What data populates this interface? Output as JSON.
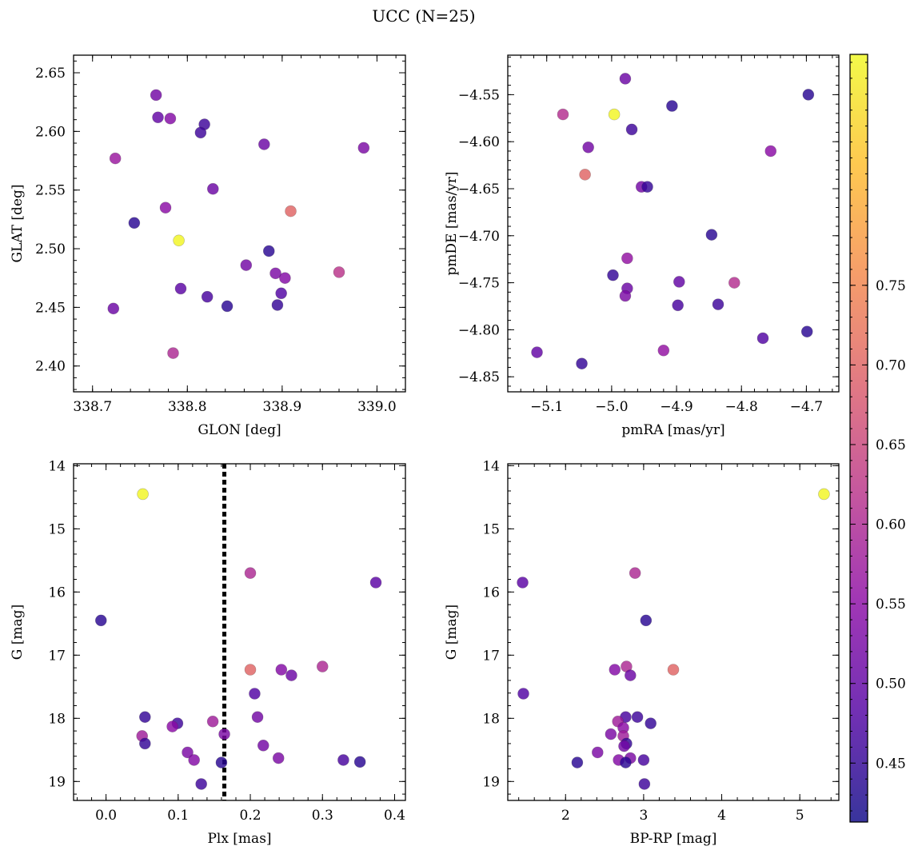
{
  "figure_title": "UCC (N=25)",
  "colormap": [
    "#0d0887",
    "#5302a3",
    "#8b0aa5",
    "#b83289",
    "#db5c68",
    "#f48849",
    "#febd2a",
    "#f0f921"
  ],
  "colorbar": {
    "min": 0.413,
    "max": 0.895,
    "ticks": [
      0.45,
      0.5,
      0.55,
      0.6,
      0.65,
      0.7,
      0.75
    ]
  },
  "chart_data": [
    {
      "type": "scatter",
      "name": "glon-glat",
      "xlabel": "GLON [deg]",
      "ylabel": "GLAT [deg]",
      "xlim": [
        338.68,
        339.03
      ],
      "ylim": [
        2.378,
        2.665
      ],
      "xticks": [
        338.7,
        338.8,
        338.9,
        339.0
      ],
      "yticks": [
        2.4,
        2.45,
        2.5,
        2.55,
        2.6,
        2.65
      ],
      "points": [
        {
          "x": 338.767,
          "y": 2.631,
          "c": 0.52
        },
        {
          "x": 338.769,
          "y": 2.612,
          "c": 0.5
        },
        {
          "x": 338.782,
          "y": 2.611,
          "c": 0.54
        },
        {
          "x": 338.818,
          "y": 2.606,
          "c": 0.46
        },
        {
          "x": 338.814,
          "y": 2.599,
          "c": 0.46
        },
        {
          "x": 338.881,
          "y": 2.589,
          "c": 0.51
        },
        {
          "x": 338.986,
          "y": 2.586,
          "c": 0.53
        },
        {
          "x": 338.724,
          "y": 2.577,
          "c": 0.57
        },
        {
          "x": 338.827,
          "y": 2.551,
          "c": 0.51
        },
        {
          "x": 338.777,
          "y": 2.535,
          "c": 0.55
        },
        {
          "x": 338.909,
          "y": 2.532,
          "c": 0.7
        },
        {
          "x": 338.744,
          "y": 2.522,
          "c": 0.44
        },
        {
          "x": 338.791,
          "y": 2.507,
          "c": 0.89
        },
        {
          "x": 338.886,
          "y": 2.498,
          "c": 0.44
        },
        {
          "x": 338.862,
          "y": 2.486,
          "c": 0.52
        },
        {
          "x": 338.96,
          "y": 2.48,
          "c": 0.62
        },
        {
          "x": 338.893,
          "y": 2.479,
          "c": 0.53
        },
        {
          "x": 338.903,
          "y": 2.475,
          "c": 0.54
        },
        {
          "x": 338.793,
          "y": 2.466,
          "c": 0.49
        },
        {
          "x": 338.899,
          "y": 2.462,
          "c": 0.48
        },
        {
          "x": 338.821,
          "y": 2.459,
          "c": 0.47
        },
        {
          "x": 338.895,
          "y": 2.452,
          "c": 0.45
        },
        {
          "x": 338.842,
          "y": 2.451,
          "c": 0.44
        },
        {
          "x": 338.722,
          "y": 2.449,
          "c": 0.51
        },
        {
          "x": 338.785,
          "y": 2.411,
          "c": 0.6
        }
      ]
    },
    {
      "type": "scatter",
      "name": "pmra-pmde",
      "xlabel": "pmRA [mas/yr]",
      "ylabel": "pmDE [mas/yr]",
      "xlim": [
        -5.16,
        -4.65
      ],
      "ylim": [
        -4.866,
        -4.508
      ],
      "xticks": [
        -5.1,
        -5.0,
        -4.9,
        -4.8,
        -4.7
      ],
      "yticks": [
        -4.55,
        -4.6,
        -4.65,
        -4.7,
        -4.75,
        -4.8,
        -4.85
      ],
      "points": [
        {
          "x": -4.979,
          "y": -4.533,
          "c": 0.51
        },
        {
          "x": -4.907,
          "y": -4.562,
          "c": 0.44
        },
        {
          "x": -4.697,
          "y": -4.55,
          "c": 0.44
        },
        {
          "x": -5.075,
          "y": -4.571,
          "c": 0.61
        },
        {
          "x": -4.996,
          "y": -4.571,
          "c": 0.89
        },
        {
          "x": -4.969,
          "y": -4.587,
          "c": 0.46
        },
        {
          "x": -5.036,
          "y": -4.606,
          "c": 0.52
        },
        {
          "x": -4.755,
          "y": -4.61,
          "c": 0.55
        },
        {
          "x": -5.041,
          "y": -4.635,
          "c": 0.7
        },
        {
          "x": -4.954,
          "y": -4.648,
          "c": 0.52
        },
        {
          "x": -4.945,
          "y": -4.648,
          "c": 0.45
        },
        {
          "x": -4.846,
          "y": -4.699,
          "c": 0.44
        },
        {
          "x": -4.976,
          "y": -4.724,
          "c": 0.56
        },
        {
          "x": -4.998,
          "y": -4.742,
          "c": 0.45
        },
        {
          "x": -4.896,
          "y": -4.749,
          "c": 0.5
        },
        {
          "x": -4.811,
          "y": -4.75,
          "c": 0.61
        },
        {
          "x": -4.976,
          "y": -4.756,
          "c": 0.51
        },
        {
          "x": -4.979,
          "y": -4.764,
          "c": 0.53
        },
        {
          "x": -4.898,
          "y": -4.774,
          "c": 0.47
        },
        {
          "x": -4.836,
          "y": -4.773,
          "c": 0.46
        },
        {
          "x": -4.767,
          "y": -4.809,
          "c": 0.48
        },
        {
          "x": -4.699,
          "y": -4.802,
          "c": 0.44
        },
        {
          "x": -4.92,
          "y": -4.822,
          "c": 0.56
        },
        {
          "x": -5.115,
          "y": -4.824,
          "c": 0.5
        },
        {
          "x": -5.046,
          "y": -4.836,
          "c": 0.45
        }
      ]
    },
    {
      "type": "scatter",
      "name": "plx-g",
      "xlabel": "Plx [mas]",
      "ylabel": "G [mag]",
      "xlim": [
        -0.045,
        0.415
      ],
      "ylim": [
        19.3,
        13.97
      ],
      "xticks": [
        0.0,
        0.1,
        0.2,
        0.3,
        0.4
      ],
      "yticks": [
        14,
        15,
        16,
        17,
        18,
        19
      ],
      "vline": 0.164,
      "points": [
        {
          "x": 0.051,
          "y": 14.45,
          "c": 0.89
        },
        {
          "x": 0.2,
          "y": 15.7,
          "c": 0.6
        },
        {
          "x": 0.374,
          "y": 15.85,
          "c": 0.49
        },
        {
          "x": -0.007,
          "y": 16.45,
          "c": 0.44
        },
        {
          "x": 0.2,
          "y": 17.23,
          "c": 0.7
        },
        {
          "x": 0.3,
          "y": 17.18,
          "c": 0.6
        },
        {
          "x": 0.243,
          "y": 17.23,
          "c": 0.54
        },
        {
          "x": 0.257,
          "y": 17.32,
          "c": 0.51
        },
        {
          "x": 0.206,
          "y": 17.61,
          "c": 0.48
        },
        {
          "x": 0.054,
          "y": 17.98,
          "c": 0.45
        },
        {
          "x": 0.21,
          "y": 17.98,
          "c": 0.52
        },
        {
          "x": 0.099,
          "y": 18.08,
          "c": 0.46
        },
        {
          "x": 0.092,
          "y": 18.13,
          "c": 0.55
        },
        {
          "x": 0.148,
          "y": 18.05,
          "c": 0.58
        },
        {
          "x": 0.05,
          "y": 18.28,
          "c": 0.58
        },
        {
          "x": 0.164,
          "y": 18.25,
          "c": 0.53
        },
        {
          "x": 0.054,
          "y": 18.4,
          "c": 0.45
        },
        {
          "x": 0.218,
          "y": 18.43,
          "c": 0.52
        },
        {
          "x": 0.113,
          "y": 18.54,
          "c": 0.53
        },
        {
          "x": 0.122,
          "y": 18.66,
          "c": 0.54
        },
        {
          "x": 0.239,
          "y": 18.63,
          "c": 0.53
        },
        {
          "x": 0.329,
          "y": 18.66,
          "c": 0.47
        },
        {
          "x": 0.352,
          "y": 18.69,
          "c": 0.44
        },
        {
          "x": 0.16,
          "y": 18.7,
          "c": 0.44
        },
        {
          "x": 0.132,
          "y": 19.04,
          "c": 0.46
        }
      ]
    },
    {
      "type": "scatter",
      "name": "bprp-g",
      "xlabel": "BP-RP [mag]",
      "ylabel": "G [mag]",
      "xlim": [
        1.26,
        5.5
      ],
      "ylim": [
        19.3,
        13.97
      ],
      "xticks": [
        2,
        3,
        4,
        5
      ],
      "yticks": [
        14,
        15,
        16,
        17,
        18,
        19
      ],
      "points": [
        {
          "x": 5.31,
          "y": 14.45,
          "c": 0.89
        },
        {
          "x": 2.89,
          "y": 15.7,
          "c": 0.6
        },
        {
          "x": 1.45,
          "y": 15.85,
          "c": 0.49
        },
        {
          "x": 3.03,
          "y": 16.45,
          "c": 0.44
        },
        {
          "x": 3.38,
          "y": 17.23,
          "c": 0.7
        },
        {
          "x": 2.78,
          "y": 17.18,
          "c": 0.6
        },
        {
          "x": 2.63,
          "y": 17.23,
          "c": 0.54
        },
        {
          "x": 2.83,
          "y": 17.32,
          "c": 0.51
        },
        {
          "x": 1.46,
          "y": 17.61,
          "c": 0.48
        },
        {
          "x": 2.77,
          "y": 17.98,
          "c": 0.47
        },
        {
          "x": 2.92,
          "y": 17.98,
          "c": 0.46
        },
        {
          "x": 3.09,
          "y": 18.08,
          "c": 0.45
        },
        {
          "x": 2.67,
          "y": 18.05,
          "c": 0.58
        },
        {
          "x": 2.74,
          "y": 18.15,
          "c": 0.55
        },
        {
          "x": 2.58,
          "y": 18.25,
          "c": 0.53
        },
        {
          "x": 2.74,
          "y": 18.28,
          "c": 0.58
        },
        {
          "x": 2.78,
          "y": 18.4,
          "c": 0.45
        },
        {
          "x": 2.75,
          "y": 18.44,
          "c": 0.52
        },
        {
          "x": 2.41,
          "y": 18.54,
          "c": 0.53
        },
        {
          "x": 2.83,
          "y": 18.63,
          "c": 0.53
        },
        {
          "x": 2.68,
          "y": 18.66,
          "c": 0.54
        },
        {
          "x": 3.0,
          "y": 18.66,
          "c": 0.47
        },
        {
          "x": 2.15,
          "y": 18.7,
          "c": 0.44
        },
        {
          "x": 2.77,
          "y": 18.7,
          "c": 0.44
        },
        {
          "x": 3.01,
          "y": 19.04,
          "c": 0.46
        }
      ]
    }
  ]
}
